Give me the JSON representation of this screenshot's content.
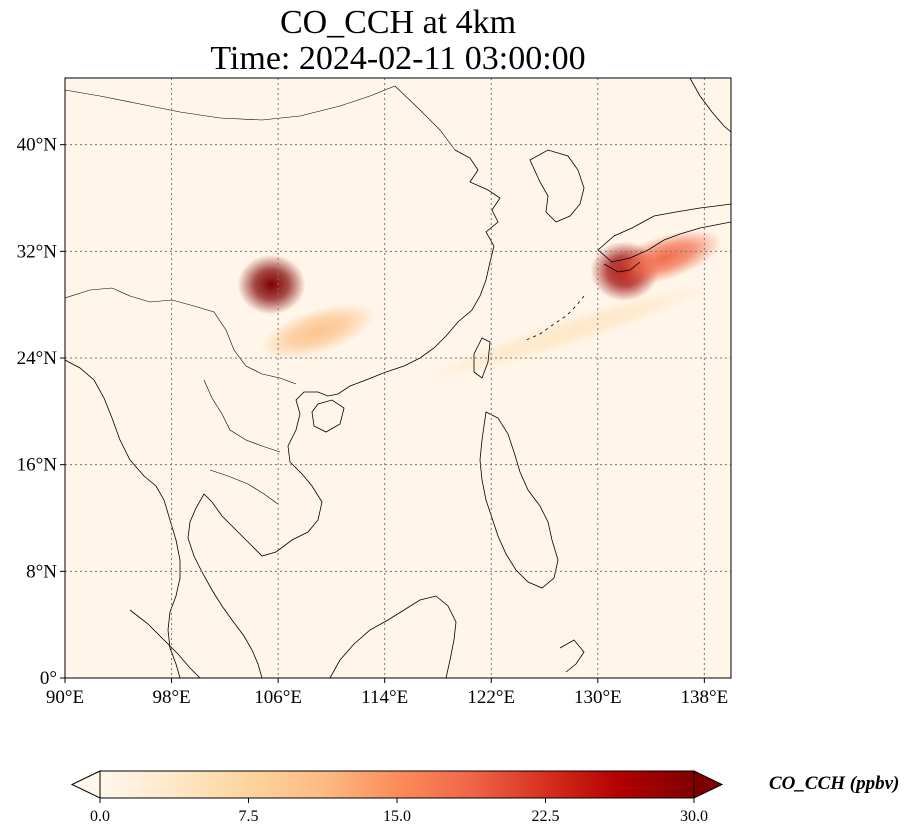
{
  "title": {
    "line1": "CO_CCH at 4km",
    "line2": "Time: 2024-02-11 03:00:00"
  },
  "map": {
    "lon_range": [
      90,
      140
    ],
    "lat_range": [
      0,
      45
    ],
    "lat_ticks": [
      {
        "value": 40,
        "label": "40°N"
      },
      {
        "value": 32,
        "label": "32°N"
      },
      {
        "value": 24,
        "label": "24°N"
      },
      {
        "value": 16,
        "label": "16°N"
      },
      {
        "value": 8,
        "label": "8°N"
      },
      {
        "value": 0,
        "label": "0°"
      }
    ],
    "lon_ticks": [
      {
        "value": 90,
        "label": "90°E"
      },
      {
        "value": 98,
        "label": "98°E"
      },
      {
        "value": 106,
        "label": "106°E"
      },
      {
        "value": 114,
        "label": "114°E"
      },
      {
        "value": 122,
        "label": "122°E"
      },
      {
        "value": 130,
        "label": "130°E"
      },
      {
        "value": 138,
        "label": "138°E"
      }
    ],
    "gridlines": "dotted",
    "background_color": "#fff5e8",
    "coastline_color": "#000000",
    "plumes": [
      {
        "name": "sichuan-basin-max",
        "lon": 105.5,
        "lat": 29.5,
        "value": 30
      },
      {
        "name": "sichuan-basin-tail",
        "lon": 109,
        "lat": 26,
        "value": 10
      },
      {
        "name": "japan-max",
        "lon": 132,
        "lat": 30.5,
        "value": 28
      },
      {
        "name": "japan-east",
        "lon": 135,
        "lat": 31.5,
        "value": 18
      },
      {
        "name": "east-sea-band",
        "lon": 128,
        "lat": 26,
        "value": 4
      }
    ]
  },
  "colorbar": {
    "label": "CO_CCH (ppbv)",
    "min": 0.0,
    "max": 30.0,
    "extend": "both",
    "cmap": "OrRd",
    "ticks": [
      {
        "value": 0.0,
        "label": "0.0"
      },
      {
        "value": 7.5,
        "label": "7.5"
      },
      {
        "value": 15.0,
        "label": "15.0"
      },
      {
        "value": 22.5,
        "label": "22.5"
      },
      {
        "value": 30.0,
        "label": "30.0"
      }
    ],
    "colors": [
      "#fff7ec",
      "#fee8c8",
      "#fdd49e",
      "#fdbb84",
      "#fc8d59",
      "#ef6548",
      "#d7301f",
      "#b30000",
      "#7f0000"
    ]
  }
}
